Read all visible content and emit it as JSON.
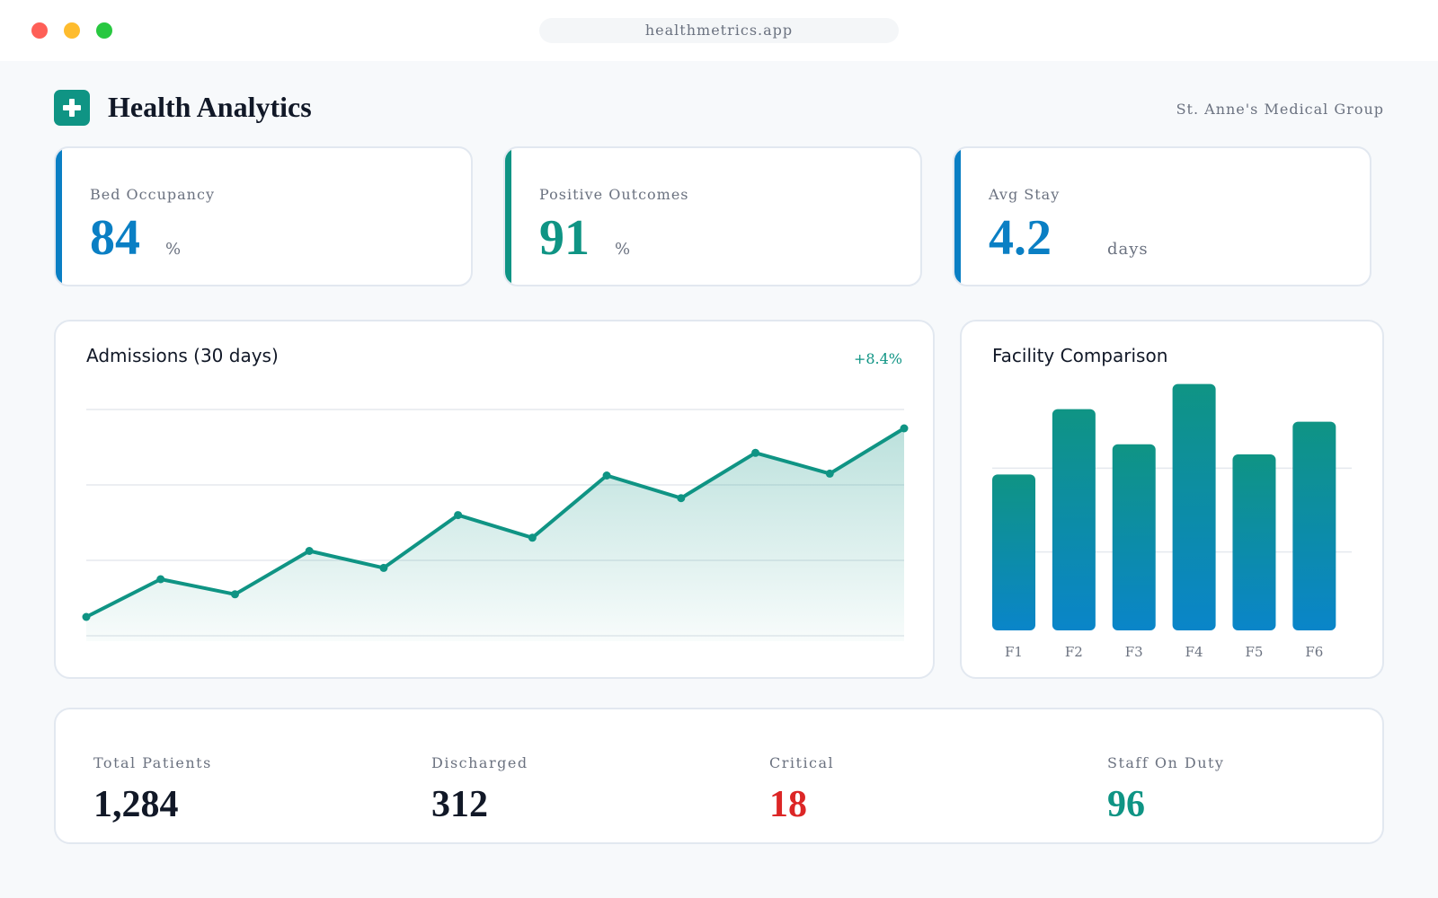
{
  "browser": {
    "url": "healthmetrics.app"
  },
  "header": {
    "title": "Health Analytics",
    "organization": "St. Anne's Medical Group",
    "logo_icon": "plus-icon",
    "brand_color": "#0f9484"
  },
  "kpis": [
    {
      "label": "Bed Occupancy",
      "value": "84",
      "unit": "%",
      "color": "#0a7fc4"
    },
    {
      "label": "Positive Outcomes",
      "value": "91",
      "unit": "%",
      "color": "#0f9484"
    },
    {
      "label": "Avg Stay",
      "value": "4.2",
      "unit": "days",
      "color": "#0a7fc4"
    }
  ],
  "admissions": {
    "title": "Admissions (30 days)",
    "delta": "+8.4%"
  },
  "facility": {
    "title": "Facility Comparison"
  },
  "chart_data": [
    {
      "type": "area",
      "title": "Admissions (30 days)",
      "x": [
        1,
        2,
        3,
        4,
        5,
        6,
        7,
        8,
        9,
        10,
        11,
        12
      ],
      "values": [
        10,
        30,
        22,
        45,
        36,
        64,
        52,
        85,
        73,
        97,
        86,
        110
      ],
      "ylim": [
        0,
        120
      ],
      "grid": true,
      "color": "#0f9484"
    },
    {
      "type": "bar",
      "title": "Facility Comparison",
      "categories": [
        "F1",
        "F2",
        "F3",
        "F4",
        "F5",
        "F6"
      ],
      "values": [
        62,
        88,
        74,
        98,
        70,
        83
      ],
      "ylim": [
        0,
        100
      ],
      "grid": true,
      "colors": [
        "#0f9484",
        "#0a85c9"
      ]
    }
  ],
  "stats": [
    {
      "label": "Total Patients",
      "value": "1,284",
      "color": "#111827"
    },
    {
      "label": "Discharged",
      "value": "312",
      "color": "#111827"
    },
    {
      "label": "Critical",
      "value": "18",
      "color": "#dc2626"
    },
    {
      "label": "Staff On Duty",
      "value": "96",
      "color": "#0f9484"
    }
  ]
}
